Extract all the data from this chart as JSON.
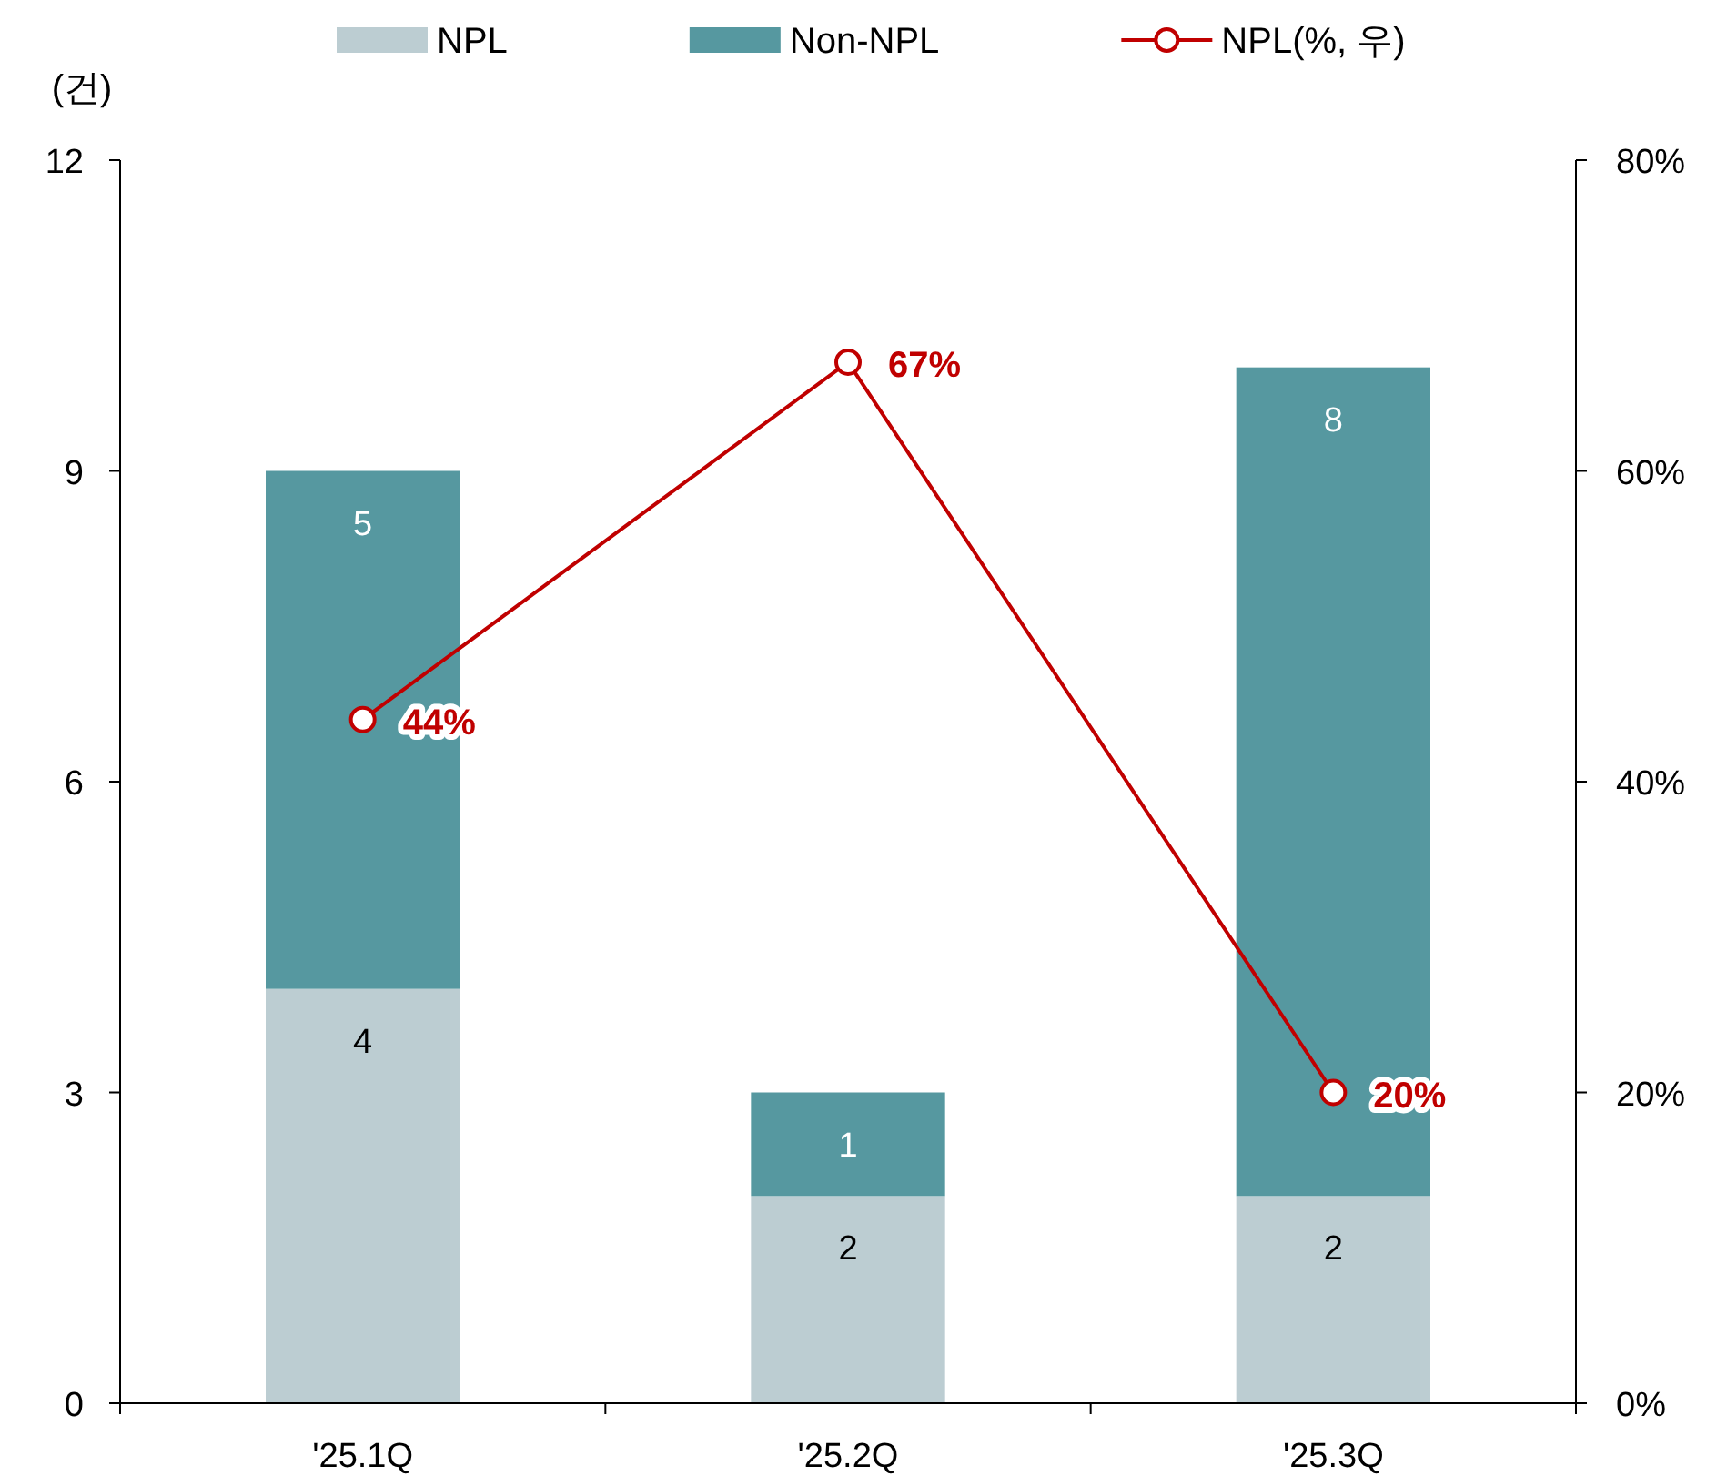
{
  "chart_data": {
    "type": "bar",
    "stacked": true,
    "ylabel": "(건)",
    "categories": [
      "'25.1Q",
      "'25.2Q",
      "'25.3Q"
    ],
    "series": [
      {
        "name": "NPL",
        "color": "#bccdd2",
        "values": [
          4,
          2,
          2
        ],
        "value_labels": [
          "4",
          "2",
          "2"
        ]
      },
      {
        "name": "Non-NPL",
        "color": "#5698a0",
        "values": [
          5,
          1,
          8
        ],
        "value_labels": [
          "5",
          "1",
          "8"
        ]
      },
      {
        "name": "NPL(%, 우)",
        "type": "line",
        "axis": "y2",
        "color": "#c00000",
        "marker": "circle",
        "line_style": "solid",
        "values": [
          44,
          67,
          20
        ],
        "value_labels": [
          "44%",
          "67%",
          "20%"
        ]
      }
    ],
    "ylim": [
      0,
      12
    ],
    "yticks": [
      0,
      3,
      6,
      9,
      12
    ],
    "y2lim": [
      0,
      80
    ],
    "y2ticks": [
      {
        "value": 0,
        "label": "0%"
      },
      {
        "value": 20,
        "label": "20%"
      },
      {
        "value": 40,
        "label": "40%"
      },
      {
        "value": 60,
        "label": "60%"
      },
      {
        "value": 80,
        "label": "80%"
      }
    ],
    "grid": false,
    "legend": "top"
  }
}
